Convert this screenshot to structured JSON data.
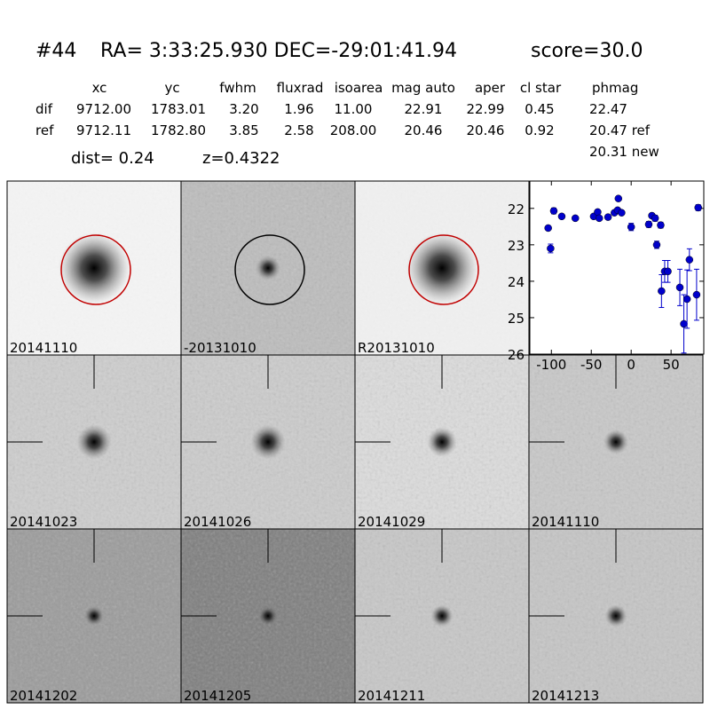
{
  "header": {
    "id": "#44",
    "coords": "RA= 3:33:25.930 DEC=-29:01:41.94",
    "score": "score=30.0"
  },
  "table": {
    "columns": [
      "xc",
      "yc",
      "fwhm",
      "fluxrad",
      "isoarea",
      "mag auto",
      "aper",
      "cl star",
      "phmag"
    ],
    "rows": [
      [
        "dif",
        "9712.00",
        "1783.01",
        "3.20",
        "1.96",
        "11.00",
        "22.91",
        "22.99",
        "0.45",
        "22.47"
      ],
      [
        "ref",
        "9712.11",
        "1782.80",
        "3.85",
        "2.58",
        "208.00",
        "20.46",
        "20.46",
        "0.92",
        "20.47 ref"
      ]
    ],
    "extra": "20.31 new"
  },
  "dist": "dist=  0.24",
  "redshift": "z=0.4322",
  "stamps": [
    "20141110",
    "-20131010",
    "R20131010",
    "20141023",
    "20141026",
    "20141029",
    "20141110",
    "20141202",
    "20141205",
    "20141211",
    "20141213"
  ],
  "chart_data": {
    "type": "errorbar",
    "color": "#0000cc",
    "x": [
      -104,
      -101,
      -97,
      -87,
      -70,
      -47,
      -42,
      -40,
      -29,
      -21,
      -17,
      -16,
      -12,
      0,
      22,
      26,
      30,
      32,
      37,
      38,
      42,
      46,
      61,
      66,
      70,
      73,
      82,
      84
    ],
    "values": [
      22.54,
      23.1,
      22.07,
      22.22,
      22.27,
      22.22,
      22.1,
      22.27,
      22.24,
      22.12,
      22.05,
      21.73,
      22.12,
      22.51,
      22.44,
      22.2,
      22.27,
      23.0,
      22.46,
      24.27,
      23.73,
      23.73,
      24.17,
      25.17,
      24.49,
      23.41,
      24.37,
      21.98
    ],
    "errors": [
      0.05,
      0.12,
      0.08,
      0.06,
      0.05,
      0.06,
      0.05,
      0.06,
      0.06,
      0.05,
      0.05,
      0.05,
      0.05,
      0.1,
      0.08,
      0.06,
      0.08,
      0.1,
      0.08,
      0.45,
      0.3,
      0.3,
      0.5,
      0.8,
      0.8,
      0.3,
      0.7,
      0.08
    ],
    "xlim": [
      -127,
      91
    ],
    "ylim": [
      26,
      21.25
    ],
    "xticks": [
      -100,
      -50,
      0,
      50
    ],
    "yticks": [
      22,
      23,
      24,
      25,
      26
    ]
  }
}
